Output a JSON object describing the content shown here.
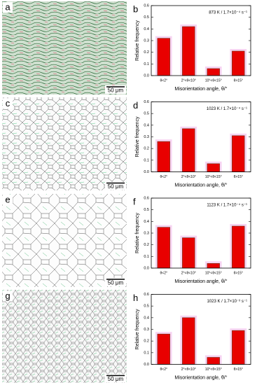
{
  "panels": [
    {
      "label": "a",
      "scale": "50 μm"
    },
    {
      "label": "c",
      "scale": "50 μm"
    },
    {
      "label": "e",
      "scale": "50 μm"
    },
    {
      "label": "g",
      "scale": "50 μm"
    }
  ],
  "chart_data": [
    {
      "type": "bar",
      "label": "b",
      "title": "873 K / 1.7×10⁻⁴ s⁻¹",
      "categories": [
        "θ<2°",
        "2°<θ<10°",
        "10°<θ<15°",
        "θ>15°"
      ],
      "values": [
        0.32,
        0.42,
        0.06,
        0.21
      ],
      "color": "#e80000",
      "xlabel": "Misorientation angle, θ/°",
      "ylabel": "Relative frequency",
      "ylim": [
        0,
        0.6
      ],
      "yticks": [
        {
          "value": 0,
          "label": "0.0"
        },
        0.1,
        0.2,
        0.3,
        0.4,
        0.5,
        0.6
      ]
    },
    {
      "type": "bar",
      "label": "d",
      "title": "1023 K / 1.7×10⁻⁴ s⁻¹",
      "categories": [
        "θ<2°",
        "2°<θ<10°",
        "10°<θ<15°",
        "θ>15°"
      ],
      "values": [
        0.26,
        0.37,
        0.07,
        0.31
      ],
      "color": "#e80000",
      "xlabel": "Misorientation angle, θ/°",
      "ylabel": "Relative frequency",
      "ylim": [
        0,
        0.6
      ],
      "yticks": [
        {
          "value": 0,
          "label": "0.0"
        },
        0.1,
        0.2,
        0.3,
        0.4,
        0.5,
        0.6
      ]
    },
    {
      "type": "bar",
      "label": "f",
      "title": "1123 K / 1.7×10⁻⁴ s⁻¹",
      "categories": [
        "θ<2°",
        "2°<θ<10°",
        "10°<θ<15°",
        "θ>15°"
      ],
      "values": [
        0.35,
        0.26,
        0.04,
        0.36
      ],
      "color": "#e80000",
      "xlabel": "Misorientation angle, θ/°",
      "ylabel": "Relative frequency",
      "ylim": [
        0,
        0.6
      ],
      "yticks": [
        {
          "value": 0,
          "label": "0.0"
        },
        0.1,
        0.2,
        0.3,
        0.4,
        0.5,
        0.6
      ]
    },
    {
      "type": "bar",
      "label": "h",
      "title": "1023 K / 1.7×10⁻³ s⁻¹",
      "categories": [
        "θ<2°",
        "2°<θ<10°",
        "10°<θ<15°",
        "θ>15°"
      ],
      "values": [
        0.26,
        0.4,
        0.06,
        0.29
      ],
      "color": "#e80000",
      "xlabel": "Misorientation angle, θ/°",
      "ylabel": "Relative frequency",
      "ylim": [
        0,
        0.6
      ],
      "yticks": [
        {
          "value": 0,
          "label": "0.0"
        },
        0.1,
        0.2,
        0.3,
        0.4,
        0.5,
        0.6
      ]
    }
  ]
}
